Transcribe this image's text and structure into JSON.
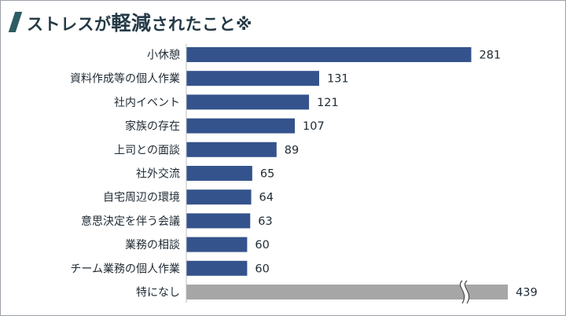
{
  "title": {
    "part1": "ストレスが",
    "emphasis": "軽減",
    "part2": "されたこと※"
  },
  "colors": {
    "bar": "#34538c",
    "bar_other": "#a6a6a6",
    "title_mark": "#2d5d63"
  },
  "chart_data": {
    "type": "bar",
    "orientation": "horizontal",
    "title": "ストレスが軽減されたこと※",
    "categories": [
      "小休憩",
      "資料作成等の個人作業",
      "社内イベント",
      "家族の存在",
      "上司との面談",
      "社外交流",
      "自宅周辺の環境",
      "意思決定を伴う会議",
      "業務の相談",
      "チーム業務の個人作業",
      "特になし"
    ],
    "values": [
      281,
      131,
      121,
      107,
      89,
      65,
      64,
      63,
      60,
      60,
      439
    ],
    "value_labels": [
      "281",
      "131",
      "121",
      "107",
      "89",
      "65",
      "64",
      "63",
      "60",
      "60",
      "439"
    ],
    "broken_axis_category": "特になし",
    "xlabel": "",
    "ylabel": "",
    "grid": false,
    "legend": "none"
  }
}
